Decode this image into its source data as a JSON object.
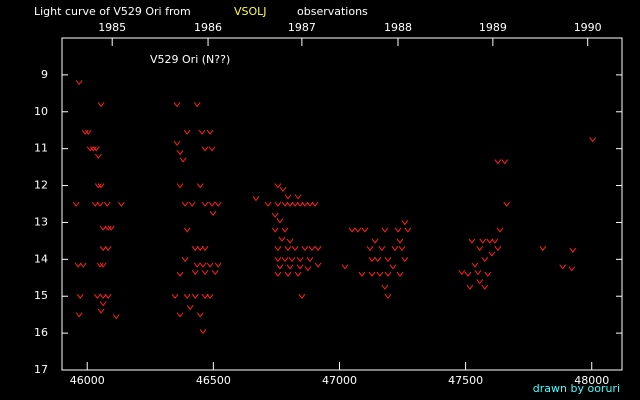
{
  "chart_data": {
    "type": "scatter",
    "title": {
      "before": "Light curve of V529 Ori from",
      "highlight": "VSOLJ",
      "after": "observations"
    },
    "annotation": "V529 Ori (N??)",
    "credit": "drawn by ooruri",
    "color": "#ff2020",
    "marker": "v",
    "x": [
      45968,
      45956,
      45964,
      45984,
      45972,
      45968,
      45992,
      46004,
      46012,
      46024,
      46036,
      46044,
      46055,
      46044,
      46055,
      46032,
      46051,
      46063,
      46083,
      46095,
      46063,
      46051,
      46063,
      46040,
      46063,
      46083,
      46055,
      46063,
      46079,
      46115,
      46135,
      46083,
      46356,
      46356,
      46368,
      46380,
      46396,
      46368,
      46388,
      46416,
      46348,
      46396,
      46428,
      46467,
      46487,
      46368,
      46408,
      46436,
      46455,
      46487,
      46467,
      46495,
      46448,
      46467,
      46495,
      46519,
      46499,
      46428,
      46448,
      46467,
      46436,
      46459,
      46487,
      46428,
      46467,
      46507,
      46519,
      46388,
      46368,
      46459,
      46448,
      46396,
      46669,
      46717,
      46756,
      46776,
      46756,
      46784,
      46804,
      46824,
      46844,
      46863,
      46883,
      46903,
      46796,
      46836,
      46745,
      46764,
      46745,
      46784,
      46772,
      46804,
      46756,
      46796,
      46824,
      46863,
      46891,
      46915,
      46756,
      46784,
      46812,
      46844,
      46883,
      46764,
      46804,
      46844,
      46756,
      46796,
      46836,
      46875,
      46915,
      46851,
      47022,
      47050,
      47073,
      47101,
      47089,
      47121,
      47129,
      47152,
      47141,
      47168,
      47180,
      47192,
      47129,
      47160,
      47192,
      47180,
      47192,
      47212,
      47232,
      47240,
      47248,
      47259,
      47240,
      47259,
      47271,
      47220,
      47485,
      47509,
      47517,
      47525,
      47537,
      47549,
      47556,
      47568,
      47576,
      47588,
      47596,
      47604,
      47616,
      47628,
      47636,
      47628,
      47655,
      47663,
      47576,
      47556,
      47806,
      47885,
      47921,
      47925,
      48004
    ],
    "values": [
      9.2,
      12.5,
      14.15,
      14.15,
      15.0,
      15.5,
      10.55,
      10.55,
      11.0,
      11.0,
      11.0,
      11.2,
      9.8,
      12.0,
      12.0,
      12.5,
      12.5,
      13.15,
      13.15,
      13.15,
      13.7,
      14.15,
      14.15,
      15.0,
      15.0,
      15.0,
      15.4,
      15.2,
      12.5,
      15.55,
      12.5,
      13.7,
      9.8,
      10.85,
      11.1,
      11.3,
      10.55,
      12.0,
      12.5,
      12.5,
      15.0,
      15.0,
      15.0,
      15.0,
      15.0,
      15.5,
      15.3,
      9.8,
      10.55,
      10.55,
      11.0,
      11.0,
      12.0,
      12.5,
      12.5,
      12.5,
      12.75,
      13.7,
      13.7,
      13.7,
      14.15,
      14.15,
      14.15,
      14.35,
      14.35,
      14.35,
      14.15,
      14.0,
      14.4,
      15.95,
      15.5,
      13.2,
      12.35,
      12.5,
      12.0,
      12.1,
      12.5,
      12.5,
      12.5,
      12.5,
      12.5,
      12.5,
      12.5,
      12.5,
      12.3,
      12.3,
      12.8,
      12.95,
      13.2,
      13.2,
      13.45,
      13.5,
      13.7,
      13.7,
      13.7,
      13.7,
      13.7,
      13.7,
      14.0,
      14.0,
      14.0,
      14.0,
      14.0,
      14.2,
      14.2,
      14.2,
      14.4,
      14.4,
      14.4,
      14.25,
      14.15,
      15.0,
      14.2,
      13.2,
      13.2,
      13.2,
      14.4,
      13.7,
      14.0,
      14.0,
      13.5,
      13.7,
      13.2,
      14.0,
      14.4,
      14.4,
      14.4,
      14.75,
      15.0,
      14.2,
      13.2,
      13.5,
      13.7,
      14.0,
      14.4,
      13.0,
      13.2,
      13.7,
      14.35,
      14.4,
      14.75,
      13.5,
      14.15,
      14.35,
      13.7,
      13.5,
      14.0,
      14.4,
      13.5,
      13.85,
      13.5,
      13.7,
      13.2,
      11.35,
      11.35,
      12.5,
      14.75,
      14.6,
      13.7,
      14.2,
      14.25,
      13.75,
      10.75
    ],
    "xlim": [
      45900,
      48120
    ],
    "xticks": [
      46000,
      46500,
      47000,
      47500,
      48000
    ],
    "x2lim": [
      45900,
      48120
    ],
    "x2ticks": [
      {
        "value": 46099,
        "label": "1985"
      },
      {
        "value": 46479,
        "label": "1986"
      },
      {
        "value": 46851,
        "label": "1987"
      },
      {
        "value": 47232,
        "label": "1988"
      },
      {
        "value": 47608,
        "label": "1989"
      },
      {
        "value": 47984,
        "label": "1990"
      }
    ],
    "ylim": [
      17,
      8
    ],
    "yticks": [
      9,
      10,
      11,
      12,
      13,
      14,
      15,
      16,
      17
    ]
  }
}
